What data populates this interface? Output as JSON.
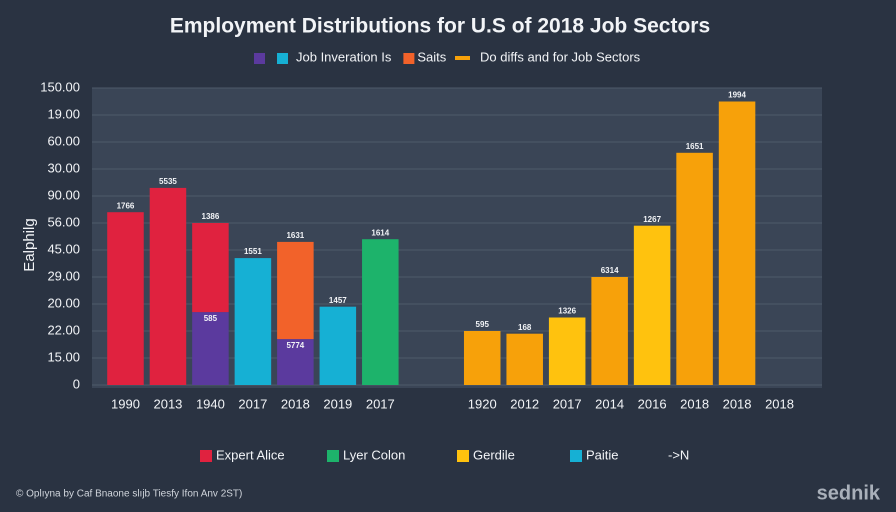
{
  "chart_data": {
    "type": "bar",
    "title": "Employment Distributions for U.S of 2018 Job Sectors",
    "y_label": "Ealphilg",
    "categories": [
      "1990",
      "2013",
      "1940",
      "2017",
      "2018",
      "2019",
      "2017",
      null,
      "1920",
      "2012",
      "2017",
      "2014",
      "2016",
      "2018",
      "2018",
      "2018"
    ],
    "ylim": [
      0,
      110
    ],
    "yticks": [
      0,
      {
        "value": 10,
        "label": "15.00"
      },
      {
        "value": 20,
        "label": "22.00"
      },
      {
        "value": 30,
        "label": "20.00"
      },
      {
        "value": 40,
        "label": "29.00"
      },
      {
        "value": 50,
        "label": "45.00"
      },
      {
        "value": 60,
        "label": "56.00"
      },
      {
        "value": 70,
        "label": "90.00"
      },
      {
        "value": 80,
        "label": "30.00"
      },
      {
        "value": 90,
        "label": "60.00"
      },
      {
        "value": 100,
        "label": "19.00"
      },
      {
        "value": 110,
        "label": "150.00"
      }
    ],
    "grid": true,
    "stacked": true,
    "series": [
      {
        "name": "Job Inveration Is",
        "color": "#5b3a9e",
        "legend": "top",
        "values": [
          null,
          null,
          27,
          null,
          17,
          null,
          null,
          null,
          null,
          null,
          null,
          null,
          null,
          null,
          null,
          null
        ],
        "value_labels": [
          null,
          null,
          "585",
          null,
          "5774",
          null,
          null,
          null,
          null,
          null,
          null,
          null,
          null,
          null,
          null,
          null
        ]
      },
      {
        "name": "Saits",
        "color": "#f2622a",
        "legend": "top",
        "values": [
          null,
          null,
          null,
          null,
          36,
          null,
          null,
          null,
          null,
          null,
          null,
          null,
          null,
          null,
          null,
          null
        ],
        "value_labels": [
          null,
          null,
          null,
          null,
          "1631",
          null,
          null,
          null,
          null,
          null,
          null,
          null,
          null,
          null,
          null,
          null
        ]
      },
      {
        "name": "Expert Alice",
        "color": "#e0223f",
        "legend": "bottom",
        "values": [
          64,
          73,
          33,
          null,
          null,
          null,
          null,
          null,
          null,
          null,
          null,
          null,
          null,
          null,
          null,
          null
        ],
        "value_labels": [
          "1766",
          "5535",
          "1386",
          null,
          null,
          null,
          null,
          null,
          null,
          null,
          null,
          null,
          null,
          null,
          null,
          null
        ]
      },
      {
        "name": "Lyer Colon",
        "color": "#1db36b",
        "legend": "bottom",
        "values": [
          null,
          null,
          null,
          null,
          null,
          null,
          54,
          null,
          null,
          null,
          null,
          null,
          null,
          null,
          null,
          null
        ],
        "value_labels": [
          null,
          null,
          null,
          null,
          null,
          null,
          "1614",
          null,
          null,
          null,
          null,
          null,
          null,
          null,
          null,
          null
        ]
      },
      {
        "name": "Gerdile",
        "color": "#ffc20e",
        "legend": "bottom",
        "colors": [
          null,
          null,
          null,
          null,
          null,
          null,
          null,
          null,
          "#f7a10a",
          "#f7a10a",
          "#ffc20e",
          "#f7a10a",
          "#ffc20e",
          "#f7a10a",
          "#f7a10a",
          null
        ],
        "values": [
          null,
          null,
          null,
          null,
          null,
          null,
          null,
          null,
          20,
          19,
          25,
          40,
          59,
          86,
          105,
          null
        ],
        "value_labels": [
          null,
          null,
          null,
          null,
          null,
          null,
          null,
          null,
          "595",
          "168",
          "1326",
          "6314",
          "1267",
          "1651",
          "1994",
          null
        ]
      },
      {
        "name": "Paitie",
        "color": "#16b0d4",
        "legend": "bottom",
        "values": [
          null,
          null,
          null,
          47,
          null,
          29,
          null,
          null,
          null,
          null,
          null,
          null,
          null,
          null,
          null,
          null
        ],
        "value_labels": [
          null,
          null,
          null,
          "1551",
          null,
          "1457",
          null,
          null,
          null,
          null,
          null,
          null,
          null,
          null,
          null,
          null
        ]
      }
    ],
    "legend_notes": [
      "Do diffs and for Job Sectors",
      "->N"
    ]
  },
  "footer": "© Oplıyna by Caf Bnaone slıjb Tiesfy Ifon Anv 2ST)",
  "watermark": "sednik"
}
